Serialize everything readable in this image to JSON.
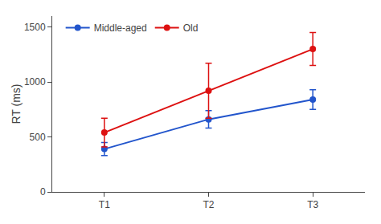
{
  "chart_data": {
    "type": "line",
    "categories": [
      "T1",
      "T2",
      "T3"
    ],
    "series": [
      {
        "name": "Middle-aged",
        "color": "#2255cc",
        "marker": "circle",
        "values": [
          390,
          660,
          840
        ],
        "yerr": [
          60,
          80,
          90
        ]
      },
      {
        "name": "Old",
        "color": "#dd1111",
        "marker": "circle",
        "values": [
          540,
          920,
          1300
        ],
        "yerr": [
          130,
          250,
          150
        ]
      }
    ],
    "ylabel": "RT (ms)",
    "ylim": [
      0,
      1600
    ],
    "yticks": [
      0,
      500,
      1000,
      1500
    ],
    "grid": false,
    "legend": "upper left"
  }
}
